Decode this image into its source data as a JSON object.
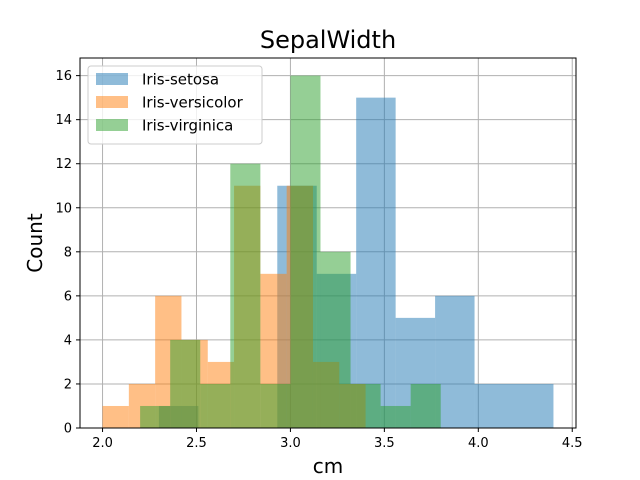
{
  "chart_data": {
    "type": "histogram",
    "title": "SepalWidth",
    "xlabel": "cm",
    "ylabel": "Count",
    "xlim": [
      1.88,
      4.52
    ],
    "ylim": [
      0,
      16.8
    ],
    "xticks": [
      2.0,
      2.5,
      3.0,
      3.5,
      4.0,
      4.5
    ],
    "xtick_labels": [
      "2.0",
      "2.5",
      "3.0",
      "3.5",
      "4.0",
      "4.5"
    ],
    "yticks": [
      0,
      2,
      4,
      6,
      8,
      10,
      12,
      14,
      16
    ],
    "ytick_labels": [
      "0",
      "2",
      "4",
      "6",
      "8",
      "10",
      "12",
      "14",
      "16"
    ],
    "grid": true,
    "legend_position": "top-left",
    "alpha": 0.5,
    "series": [
      {
        "name": "Iris-setosa",
        "color": "#1f77b4",
        "bins": [
          {
            "x0": 2.3,
            "x1": 2.51,
            "count": 1
          },
          {
            "x0": 2.51,
            "x1": 2.72,
            "count": 0
          },
          {
            "x0": 2.72,
            "x1": 2.93,
            "count": 0
          },
          {
            "x0": 2.93,
            "x1": 3.14,
            "count": 11
          },
          {
            "x0": 3.14,
            "x1": 3.35,
            "count": 7
          },
          {
            "x0": 3.35,
            "x1": 3.56,
            "count": 15
          },
          {
            "x0": 3.56,
            "x1": 3.77,
            "count": 5
          },
          {
            "x0": 3.77,
            "x1": 3.98,
            "count": 6
          },
          {
            "x0": 3.98,
            "x1": 4.19,
            "count": 2
          },
          {
            "x0": 4.19,
            "x1": 4.4,
            "count": 2
          }
        ]
      },
      {
        "name": "Iris-versicolor",
        "color": "#ff7f0e",
        "bins": [
          {
            "x0": 2.0,
            "x1": 2.14,
            "count": 1
          },
          {
            "x0": 2.14,
            "x1": 2.28,
            "count": 2
          },
          {
            "x0": 2.28,
            "x1": 2.42,
            "count": 6
          },
          {
            "x0": 2.42,
            "x1": 2.56,
            "count": 4
          },
          {
            "x0": 2.56,
            "x1": 2.7,
            "count": 3
          },
          {
            "x0": 2.7,
            "x1": 2.84,
            "count": 11
          },
          {
            "x0": 2.84,
            "x1": 2.98,
            "count": 7
          },
          {
            "x0": 2.98,
            "x1": 3.12,
            "count": 11
          },
          {
            "x0": 3.12,
            "x1": 3.26,
            "count": 3
          },
          {
            "x0": 3.26,
            "x1": 3.4,
            "count": 2
          }
        ]
      },
      {
        "name": "Iris-virginica",
        "color": "#2ca02c",
        "bins": [
          {
            "x0": 2.2,
            "x1": 2.36,
            "count": 1
          },
          {
            "x0": 2.36,
            "x1": 2.52,
            "count": 4
          },
          {
            "x0": 2.52,
            "x1": 2.68,
            "count": 2
          },
          {
            "x0": 2.68,
            "x1": 2.84,
            "count": 12
          },
          {
            "x0": 2.84,
            "x1": 3.0,
            "count": 2
          },
          {
            "x0": 3.0,
            "x1": 3.16,
            "count": 16
          },
          {
            "x0": 3.16,
            "x1": 3.32,
            "count": 8
          },
          {
            "x0": 3.32,
            "x1": 3.48,
            "count": 2
          },
          {
            "x0": 3.48,
            "x1": 3.64,
            "count": 1
          },
          {
            "x0": 3.64,
            "x1": 3.8,
            "count": 2
          }
        ]
      }
    ]
  }
}
